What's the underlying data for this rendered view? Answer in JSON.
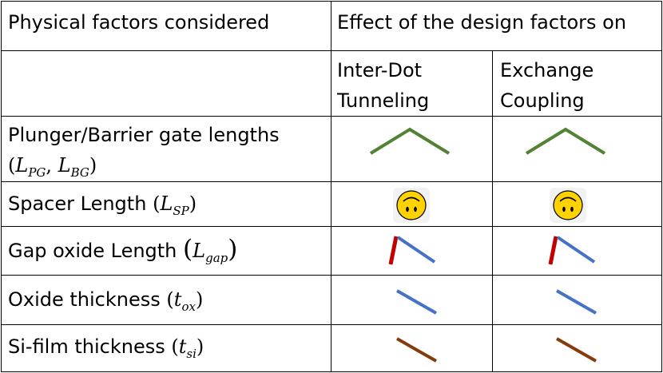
{
  "table": {
    "header": {
      "col1": "Physical factors considered",
      "col_group": "Effect of the design factors on",
      "sub1_line1": "Inter-Dot",
      "sub1_line2": "Tunneling",
      "sub2_line1": "Exchange",
      "sub2_line2": "Coupling"
    },
    "rows": [
      {
        "label": "Plunger/Barrier gate lengths",
        "sym1": "L",
        "sub1": "PG",
        "sep": ",",
        "sym2": "L",
        "sub2": "BG",
        "tunneling_icon": "green-peak-line-icon",
        "exchange_icon": "green-peak-line-icon"
      },
      {
        "label": "Spacer Length",
        "sym": "L",
        "sub": "SP",
        "tunneling_icon": "upside-down-smiley-icon",
        "exchange_icon": "upside-down-smiley-icon"
      },
      {
        "label": "Gap oxide Length",
        "sym": "L",
        "sub": "gap",
        "tunneling_icon": "red-up-blue-down-line-icon",
        "exchange_icon": "red-up-blue-down-line-icon"
      },
      {
        "label": "Oxide thickness",
        "sym": "t",
        "sub": "ox",
        "tunneling_icon": "blue-decreasing-line-icon",
        "exchange_icon": "blue-decreasing-line-icon"
      },
      {
        "label": "Si-film thickness",
        "sym": "t",
        "sub": "si",
        "tunneling_icon": "brown-decreasing-line-icon",
        "exchange_icon": "brown-decreasing-line-icon"
      }
    ]
  },
  "colors": {
    "green": "#548235",
    "red": "#c00000",
    "blue": "#4472c4",
    "brown": "#843c0c",
    "smiley_fill": "#ffd200",
    "smiley_bg": "#f2f2f2"
  }
}
